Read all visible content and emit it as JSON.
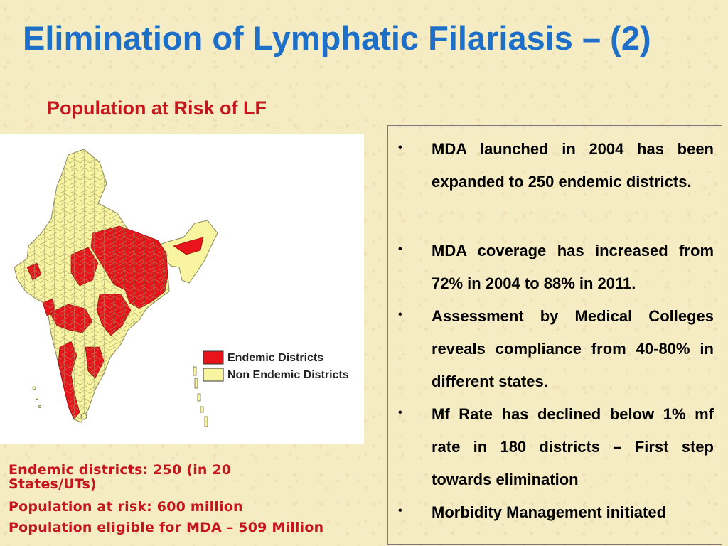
{
  "slide": {
    "title": "Elimination of Lymphatic Filariasis – (2)",
    "subtitle": "Population at Risk of LF"
  },
  "map": {
    "legend": [
      {
        "label": "Endemic Districts",
        "color": "#e8141c"
      },
      {
        "label": "Non Endemic Districts",
        "color": "#f8f4a0"
      }
    ]
  },
  "stats": [
    "Endemic districts: 250  (in 20 States/UTs)",
    "Population at risk: 600 million",
    "Population eligible for MDA – 509 Million"
  ],
  "bullets": [
    {
      "mark": "•",
      "text": "MDA launched in 2004 has been expanded to 250 endemic districts."
    },
    {
      "mark": "•",
      "text": "MDA coverage has increased from 72% in 2004 to 88% in 2011."
    },
    {
      "mark": "•",
      "text": "Assessment by Medical Colleges reveals compliance from 40-80% in different states."
    },
    {
      "mark": "•",
      "text": "Mf Rate has declined below 1% mf rate in 180 districts – First step towards elimination"
    },
    {
      "mark": "•",
      "text": "Morbidity Management initiated"
    }
  ]
}
